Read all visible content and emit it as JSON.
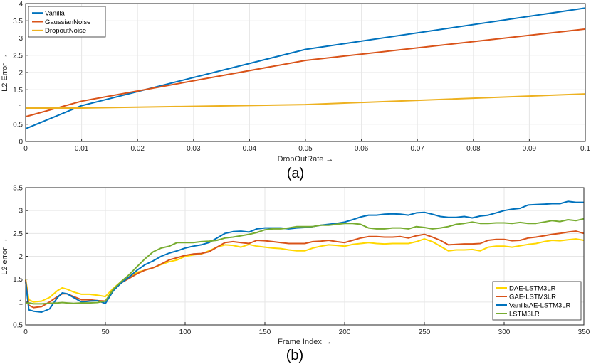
{
  "chart_data": [
    {
      "type": "line",
      "caption": "(a)",
      "xlabel": "DropOutRate",
      "ylabel": "L2 Error",
      "arrow": "→",
      "xlim": [
        0,
        0.1
      ],
      "ylim": [
        0,
        4
      ],
      "xticks": [
        0,
        0.01,
        0.02,
        0.03,
        0.04,
        0.05,
        0.06,
        0.07,
        0.08,
        0.09,
        0.1
      ],
      "yticks": [
        0,
        0.5,
        1,
        1.5,
        2,
        2.5,
        3,
        3.5,
        4
      ],
      "grid": true,
      "legend_position": "top-left",
      "series": [
        {
          "name": "Vanilla",
          "color": "#0072BD",
          "x": [
            0,
            0.01,
            0.05,
            0.1
          ],
          "y": [
            0.37,
            1.04,
            2.67,
            3.87
          ]
        },
        {
          "name": "GaussianNoise",
          "color": "#D95319",
          "x": [
            0,
            0.01,
            0.05,
            0.1
          ],
          "y": [
            0.72,
            1.17,
            2.35,
            3.26
          ]
        },
        {
          "name": "DropoutNoise",
          "color": "#EDB120",
          "x": [
            0,
            0.01,
            0.05,
            0.1
          ],
          "y": [
            0.97,
            0.97,
            1.07,
            1.38
          ]
        }
      ]
    },
    {
      "type": "line",
      "caption": "(b)",
      "xlabel": "Frame Index",
      "ylabel": "L2 error",
      "arrow": "→",
      "xlim": [
        0,
        350
      ],
      "ylim": [
        0.5,
        3.5
      ],
      "xticks": [
        0,
        50,
        100,
        150,
        200,
        250,
        300,
        350
      ],
      "yticks": [
        0.5,
        1,
        1.5,
        2,
        2.5,
        3,
        3.5
      ],
      "grid": true,
      "legend_position": "bottom-right",
      "series": [
        {
          "name": "DAE-LSTM3LR",
          "color": "#FFD700",
          "x": [
            0,
            2,
            5,
            10,
            15,
            20,
            23,
            26,
            30,
            35,
            40,
            45,
            50,
            55,
            60,
            65,
            70,
            75,
            80,
            85,
            90,
            95,
            100,
            105,
            110,
            115,
            120,
            125,
            130,
            135,
            140,
            145,
            150,
            155,
            160,
            165,
            170,
            175,
            180,
            185,
            190,
            195,
            200,
            205,
            210,
            215,
            220,
            225,
            230,
            235,
            240,
            245,
            250,
            255,
            260,
            265,
            270,
            275,
            280,
            285,
            290,
            295,
            300,
            305,
            310,
            315,
            320,
            325,
            330,
            335,
            340,
            345,
            350
          ],
          "y": [
            1.5,
            1.05,
            1.0,
            1.02,
            1.1,
            1.25,
            1.31,
            1.28,
            1.22,
            1.17,
            1.17,
            1.15,
            1.12,
            1.3,
            1.45,
            1.55,
            1.65,
            1.7,
            1.75,
            1.82,
            1.88,
            1.92,
            2.0,
            2.03,
            2.05,
            2.12,
            2.2,
            2.25,
            2.24,
            2.2,
            2.26,
            2.22,
            2.2,
            2.18,
            2.17,
            2.14,
            2.12,
            2.12,
            2.18,
            2.22,
            2.25,
            2.24,
            2.22,
            2.26,
            2.28,
            2.3,
            2.28,
            2.27,
            2.28,
            2.28,
            2.28,
            2.32,
            2.38,
            2.32,
            2.22,
            2.12,
            2.14,
            2.14,
            2.15,
            2.12,
            2.2,
            2.22,
            2.22,
            2.2,
            2.23,
            2.26,
            2.28,
            2.32,
            2.35,
            2.34,
            2.36,
            2.38,
            2.35
          ]
        },
        {
          "name": "GAE-LSTM3LR",
          "color": "#D95319",
          "x": [
            0,
            2,
            5,
            10,
            15,
            20,
            23,
            26,
            30,
            35,
            40,
            45,
            50,
            55,
            60,
            65,
            70,
            75,
            80,
            85,
            90,
            95,
            100,
            105,
            110,
            115,
            120,
            125,
            130,
            135,
            140,
            145,
            150,
            155,
            160,
            165,
            170,
            175,
            180,
            185,
            190,
            195,
            200,
            205,
            210,
            215,
            220,
            225,
            230,
            235,
            240,
            245,
            250,
            255,
            260,
            265,
            270,
            275,
            280,
            285,
            290,
            295,
            300,
            305,
            310,
            315,
            320,
            325,
            330,
            335,
            340,
            345,
            350
          ],
          "y": [
            1.48,
            0.93,
            0.88,
            0.9,
            1.0,
            1.12,
            1.18,
            1.18,
            1.12,
            1.05,
            1.05,
            1.03,
            1.02,
            1.28,
            1.42,
            1.52,
            1.62,
            1.7,
            1.75,
            1.83,
            1.92,
            1.97,
            2.02,
            2.05,
            2.06,
            2.1,
            2.2,
            2.3,
            2.32,
            2.3,
            2.28,
            2.35,
            2.34,
            2.32,
            2.3,
            2.28,
            2.28,
            2.28,
            2.32,
            2.33,
            2.35,
            2.32,
            2.3,
            2.35,
            2.4,
            2.43,
            2.43,
            2.42,
            2.42,
            2.43,
            2.4,
            2.45,
            2.48,
            2.42,
            2.35,
            2.25,
            2.26,
            2.27,
            2.27,
            2.28,
            2.35,
            2.37,
            2.37,
            2.34,
            2.35,
            2.4,
            2.42,
            2.45,
            2.48,
            2.5,
            2.53,
            2.55,
            2.5
          ]
        },
        {
          "name": "VanillaAE-LSTM3LR",
          "color": "#0072BD",
          "x": [
            0,
            2,
            5,
            10,
            15,
            20,
            23,
            26,
            30,
            35,
            40,
            45,
            50,
            55,
            60,
            65,
            70,
            75,
            80,
            85,
            90,
            95,
            100,
            105,
            110,
            115,
            120,
            125,
            130,
            135,
            140,
            145,
            150,
            155,
            160,
            165,
            170,
            175,
            180,
            185,
            190,
            195,
            200,
            205,
            210,
            215,
            220,
            225,
            230,
            235,
            240,
            245,
            250,
            255,
            260,
            265,
            270,
            275,
            280,
            285,
            290,
            295,
            300,
            305,
            310,
            315,
            320,
            325,
            330,
            335,
            340,
            345,
            350
          ],
          "y": [
            1.45,
            0.83,
            0.8,
            0.78,
            0.85,
            1.1,
            1.2,
            1.18,
            1.1,
            1.0,
            1.02,
            1.03,
            0.97,
            1.25,
            1.42,
            1.55,
            1.7,
            1.82,
            1.9,
            2.0,
            2.07,
            2.12,
            2.18,
            2.22,
            2.25,
            2.3,
            2.4,
            2.5,
            2.54,
            2.55,
            2.53,
            2.6,
            2.62,
            2.62,
            2.62,
            2.6,
            2.62,
            2.63,
            2.65,
            2.68,
            2.7,
            2.72,
            2.75,
            2.8,
            2.86,
            2.9,
            2.9,
            2.92,
            2.93,
            2.92,
            2.9,
            2.95,
            2.96,
            2.92,
            2.87,
            2.85,
            2.85,
            2.87,
            2.84,
            2.88,
            2.9,
            2.95,
            3.0,
            3.03,
            3.05,
            3.12,
            3.13,
            3.14,
            3.15,
            3.15,
            3.2,
            3.18,
            3.18
          ]
        },
        {
          "name": "LSTM3LR",
          "color": "#77AC30",
          "x": [
            0,
            2,
            5,
            10,
            15,
            20,
            23,
            26,
            30,
            35,
            40,
            45,
            50,
            55,
            60,
            65,
            70,
            75,
            80,
            85,
            90,
            95,
            100,
            105,
            110,
            115,
            120,
            125,
            130,
            135,
            140,
            145,
            150,
            155,
            160,
            165,
            170,
            175,
            180,
            185,
            190,
            195,
            200,
            205,
            210,
            215,
            220,
            225,
            230,
            235,
            240,
            245,
            250,
            255,
            260,
            265,
            270,
            275,
            280,
            285,
            290,
            295,
            300,
            305,
            310,
            315,
            320,
            325,
            330,
            335,
            340,
            345,
            350
          ],
          "y": [
            0.98,
            0.98,
            0.96,
            0.96,
            0.97,
            0.98,
            0.99,
            0.98,
            0.97,
            0.98,
            0.98,
            0.99,
            1.02,
            1.28,
            1.45,
            1.6,
            1.78,
            1.95,
            2.1,
            2.18,
            2.22,
            2.3,
            2.3,
            2.3,
            2.32,
            2.33,
            2.35,
            2.4,
            2.42,
            2.45,
            2.48,
            2.52,
            2.58,
            2.6,
            2.6,
            2.62,
            2.65,
            2.65,
            2.65,
            2.68,
            2.68,
            2.7,
            2.72,
            2.72,
            2.7,
            2.62,
            2.6,
            2.6,
            2.62,
            2.62,
            2.6,
            2.65,
            2.63,
            2.6,
            2.62,
            2.65,
            2.7,
            2.72,
            2.75,
            2.72,
            2.72,
            2.73,
            2.73,
            2.72,
            2.74,
            2.72,
            2.72,
            2.75,
            2.78,
            2.76,
            2.8,
            2.78,
            2.82
          ]
        }
      ]
    }
  ]
}
